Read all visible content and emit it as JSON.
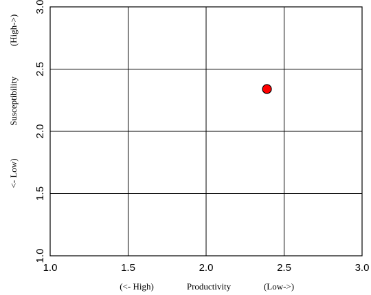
{
  "chart_data": {
    "type": "scatter",
    "title": "",
    "x": [
      2.39
    ],
    "y": [
      2.34
    ],
    "xlim": [
      1.0,
      3.0
    ],
    "ylim": [
      1.0,
      3.0
    ],
    "xticks": [
      "1.0",
      "1.5",
      "2.0",
      "2.5",
      "3.0"
    ],
    "yticks": [
      "1.0",
      "1.5",
      "2.0",
      "2.5",
      "3.0"
    ],
    "xlabel": {
      "left": "(<- High)",
      "center": "Productivity",
      "right": "(Low->)"
    },
    "ylabel": {
      "bottom": "<- Low)",
      "center": "Susceptibility",
      "top": "(High->)"
    },
    "grid": true,
    "marker_color": "#ff0000",
    "marker_edge_color": "#000000"
  }
}
